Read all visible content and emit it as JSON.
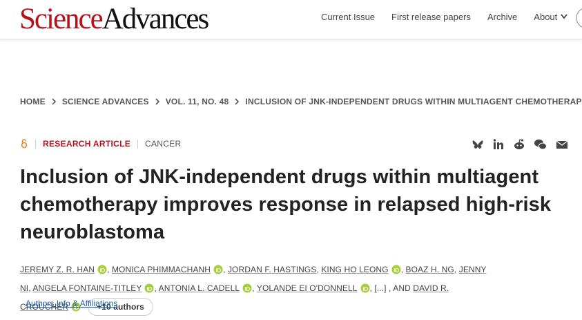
{
  "header": {
    "logo": {
      "science": "Science",
      "advances": "Advances"
    },
    "nav": [
      "Current Issue",
      "First release papers",
      "Archive",
      "About"
    ]
  },
  "breadcrumb": [
    "HOME",
    "SCIENCE ADVANCES",
    "VOL. 11, NO. 48",
    "INCLUSION OF JNK-INDEPENDENT DRUGS WITHIN MULTIAGENT CHEMOTHERAPY…"
  ],
  "article": {
    "type": "RESEARCH ARTICLE",
    "subject": "CANCER",
    "title": "Inclusion of JNK-independent drugs within multiagent chemotherapy improves response in relapsed high-risk neuroblastoma",
    "authors": [
      {
        "name": "JEREMY Z. R. HAN",
        "orcid": true
      },
      {
        "name": "MONICA PHIMMACHANH",
        "orcid": true
      },
      {
        "name": "JORDAN F. HASTINGS",
        "orcid": false
      },
      {
        "name": "KING HO LEONG",
        "orcid": true
      },
      {
        "name": "BOAZ H. NG",
        "orcid": false
      },
      {
        "name": "JENNY NI",
        "orcid": false
      },
      {
        "name": "ANGELA FONTAINE-TITLEY",
        "orcid": true
      },
      {
        "name": "ANTONIA L. CADELL",
        "orcid": true
      },
      {
        "name": "YOLANDE EI O'DONNELL",
        "orcid": true
      },
      {
        "name": "DAVID R. CROUCHER",
        "orcid": true
      }
    ],
    "separator": ",",
    "ellipsis": "[...]",
    "and": "AND",
    "more_authors": "+10 authors",
    "affiliations_link": "Authors Info & Affiliations"
  }
}
